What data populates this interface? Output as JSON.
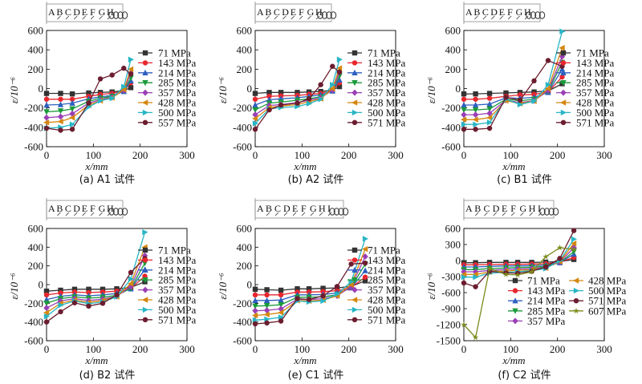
{
  "figure": {
    "panels": [
      {
        "caption": "(a) A1 试件",
        "strip_letters": [
          "A",
          "B",
          "C",
          "D",
          "E",
          "F",
          "G",
          "H"
        ]
      },
      {
        "caption": "(b) A2 试件",
        "strip_letters": [
          "A",
          "B",
          "C",
          "D",
          "E",
          "F",
          "G",
          "H"
        ]
      },
      {
        "caption": "(c) B1 试件",
        "strip_letters": [
          "A",
          "B",
          "C",
          "D",
          "E",
          "F",
          "G",
          "H"
        ]
      },
      {
        "caption": "(d) B2 试件",
        "strip_letters": [
          "A",
          "B",
          "C",
          "D",
          "E",
          "F",
          "G",
          "H"
        ]
      },
      {
        "caption": "(e) C1 试件",
        "strip_letters": [
          "A",
          "B",
          "C",
          "D",
          "E",
          "F",
          "G",
          "H",
          "I"
        ]
      },
      {
        "caption": "(f) C2 试件",
        "strip_letters": [
          "A",
          "B",
          "C",
          "D",
          "E",
          "F",
          "G",
          "H",
          "I"
        ]
      }
    ]
  },
  "chart_data": [
    {
      "type": "line",
      "title": "",
      "xlabel": "x/mm",
      "ylabel": "ε/10⁻⁶",
      "xlim": [
        0,
        300
      ],
      "ylim": [
        -600,
        600
      ],
      "xticks": [
        0,
        100,
        200,
        300
      ],
      "yticks": [
        -600,
        -400,
        -200,
        0,
        200,
        400,
        600
      ],
      "x": [
        0,
        30,
        55,
        90,
        115,
        140,
        165,
        180
      ],
      "series": [
        {
          "name": "71 MPa",
          "color": "#333333",
          "marker": "square",
          "values": [
            -50,
            -50,
            -55,
            -45,
            -40,
            -35,
            -20,
            10
          ]
        },
        {
          "name": "143 MPa",
          "color": "#e8262d",
          "marker": "circle",
          "values": [
            -110,
            -110,
            -110,
            -80,
            -60,
            -50,
            -25,
            60
          ]
        },
        {
          "name": "214 MPa",
          "color": "#2d5fbf",
          "marker": "triangle",
          "values": [
            -170,
            -165,
            -150,
            -105,
            -85,
            -70,
            -30,
            80
          ]
        },
        {
          "name": "285 MPa",
          "color": "#1a9a3a",
          "marker": "tri-down",
          "values": [
            -240,
            -230,
            -210,
            -130,
            -100,
            -80,
            -25,
            110
          ]
        },
        {
          "name": "357 MPa",
          "color": "#9a3fb5",
          "marker": "diamond",
          "values": [
            -300,
            -290,
            -260,
            -150,
            -115,
            -90,
            -20,
            160
          ]
        },
        {
          "name": "428 MPa",
          "color": "#d5860f",
          "marker": "tri-left",
          "values": [
            -350,
            -340,
            -300,
            -170,
            -125,
            -95,
            -10,
            200
          ]
        },
        {
          "name": "500 MPa",
          "color": "#27b5c4",
          "marker": "tri-right",
          "values": [
            -410,
            -400,
            -370,
            -190,
            -125,
            -100,
            20,
            300
          ]
        },
        {
          "name": "557 MPa",
          "color": "#6b1d2f",
          "marker": "circle",
          "values": [
            -410,
            -430,
            -420,
            -150,
            100,
            140,
            210,
            150
          ]
        }
      ]
    },
    {
      "type": "line",
      "title": "",
      "xlabel": "x/mm",
      "ylabel": "ε/10⁻⁶",
      "xlim": [
        0,
        300
      ],
      "ylim": [
        -600,
        600
      ],
      "xticks": [
        0,
        100,
        200,
        300
      ],
      "yticks": [
        -600,
        -400,
        -200,
        0,
        200,
        400,
        600
      ],
      "x": [
        0,
        30,
        55,
        90,
        115,
        140,
        165,
        180
      ],
      "series": [
        {
          "name": "71 MPa",
          "color": "#333333",
          "marker": "square",
          "values": [
            -50,
            -40,
            -40,
            -40,
            -35,
            -30,
            -15,
            20
          ]
        },
        {
          "name": "143 MPa",
          "color": "#e8262d",
          "marker": "circle",
          "values": [
            -110,
            -80,
            -75,
            -70,
            -60,
            -50,
            -20,
            60
          ]
        },
        {
          "name": "214 MPa",
          "color": "#2d5fbf",
          "marker": "triangle",
          "values": [
            -170,
            -115,
            -105,
            -95,
            -80,
            -65,
            -25,
            90
          ]
        },
        {
          "name": "285 MPa",
          "color": "#1a9a3a",
          "marker": "tri-down",
          "values": [
            -220,
            -150,
            -140,
            -120,
            -105,
            -85,
            -20,
            130
          ]
        },
        {
          "name": "357 MPa",
          "color": "#9a3fb5",
          "marker": "diamond",
          "values": [
            -270,
            -175,
            -165,
            -145,
            -120,
            -95,
            -15,
            170
          ]
        },
        {
          "name": "428 MPa",
          "color": "#d5860f",
          "marker": "tri-left",
          "values": [
            -310,
            -195,
            -180,
            -165,
            -135,
            -105,
            0,
            210
          ]
        },
        {
          "name": "500 MPa",
          "color": "#27b5c4",
          "marker": "tri-right",
          "values": [
            -360,
            -210,
            -195,
            -185,
            -155,
            -110,
            40,
            300
          ]
        },
        {
          "name": "571 MPa",
          "color": "#6b1d2f",
          "marker": "circle",
          "values": [
            -420,
            -220,
            -170,
            -150,
            -105,
            40,
            230,
            170
          ]
        }
      ]
    },
    {
      "type": "line",
      "title": "",
      "xlabel": "x/mm",
      "ylabel": "ε/10⁻⁶",
      "xlim": [
        0,
        300
      ],
      "ylim": [
        -600,
        600
      ],
      "xticks": [
        0,
        100,
        200,
        300
      ],
      "yticks": [
        -600,
        -400,
        -200,
        0,
        200,
        400,
        600
      ],
      "x": [
        0,
        25,
        55,
        90,
        120,
        150,
        180,
        210
      ],
      "series": [
        {
          "name": "71 MPa",
          "color": "#333333",
          "marker": "square",
          "values": [
            -55,
            -55,
            -50,
            -45,
            -40,
            -35,
            -25,
            50
          ]
        },
        {
          "name": "143 MPa",
          "color": "#e8262d",
          "marker": "circle",
          "values": [
            -110,
            -110,
            -100,
            -80,
            -65,
            -60,
            -35,
            120
          ]
        },
        {
          "name": "214 MPa",
          "color": "#2d5fbf",
          "marker": "triangle",
          "values": [
            -170,
            -170,
            -160,
            -95,
            -100,
            -90,
            -40,
            200
          ]
        },
        {
          "name": "285 MPa",
          "color": "#1a9a3a",
          "marker": "tri-down",
          "values": [
            -220,
            -220,
            -210,
            -110,
            -125,
            -110,
            -30,
            270
          ]
        },
        {
          "name": "357 MPa",
          "color": "#9a3fb5",
          "marker": "diamond",
          "values": [
            -270,
            -270,
            -255,
            -120,
            -145,
            -125,
            -20,
            330
          ]
        },
        {
          "name": "428 MPa",
          "color": "#d5860f",
          "marker": "tri-left",
          "values": [
            -320,
            -320,
            -300,
            -125,
            -155,
            -130,
            0,
            420
          ]
        },
        {
          "name": "500 MPa",
          "color": "#27b5c4",
          "marker": "tri-right",
          "values": [
            -370,
            -370,
            -350,
            -110,
            -165,
            -130,
            40,
            590
          ]
        },
        {
          "name": "571 MPa",
          "color": "#6b1d2f",
          "marker": "circle",
          "values": [
            -420,
            -420,
            -410,
            -90,
            -120,
            80,
            290,
            230
          ]
        }
      ]
    },
    {
      "type": "line",
      "title": "",
      "xlabel": "x/mm",
      "ylabel": "ε/10⁻⁶",
      "xlim": [
        0,
        300
      ],
      "ylim": [
        -600,
        600
      ],
      "xticks": [
        0,
        100,
        200,
        300
      ],
      "yticks": [
        -600,
        -400,
        -200,
        0,
        200,
        400,
        600
      ],
      "x": [
        0,
        30,
        60,
        90,
        120,
        150,
        180,
        210
      ],
      "series": [
        {
          "name": "71 MPa",
          "color": "#333333",
          "marker": "square",
          "values": [
            -70,
            -60,
            -50,
            -50,
            -50,
            -45,
            -30,
            30
          ]
        },
        {
          "name": "143 MPa",
          "color": "#e8262d",
          "marker": "circle",
          "values": [
            -110,
            -90,
            -80,
            -85,
            -80,
            -70,
            -40,
            90
          ]
        },
        {
          "name": "214 MPa",
          "color": "#2d5fbf",
          "marker": "triangle",
          "values": [
            -160,
            -125,
            -110,
            -120,
            -110,
            -95,
            -45,
            160
          ]
        },
        {
          "name": "285 MPa",
          "color": "#1a9a3a",
          "marker": "tri-down",
          "values": [
            -200,
            -150,
            -130,
            -145,
            -135,
            -115,
            -40,
            230
          ]
        },
        {
          "name": "357 MPa",
          "color": "#9a3fb5",
          "marker": "diamond",
          "values": [
            -250,
            -175,
            -150,
            -170,
            -155,
            -125,
            -20,
            310
          ]
        },
        {
          "name": "428 MPa",
          "color": "#d5860f",
          "marker": "tri-left",
          "values": [
            -300,
            -200,
            -165,
            -190,
            -170,
            -130,
            10,
            400
          ]
        },
        {
          "name": "500 MPa",
          "color": "#27b5c4",
          "marker": "tri-right",
          "values": [
            -340,
            -220,
            -175,
            -205,
            -185,
            -130,
            60,
            560
          ]
        },
        {
          "name": "571 MPa",
          "color": "#6b1d2f",
          "marker": "circle",
          "values": [
            -400,
            -290,
            -195,
            -230,
            -200,
            -110,
            130,
            280
          ]
        }
      ]
    },
    {
      "type": "line",
      "title": "",
      "xlabel": "x/mm",
      "ylabel": "ε/10⁻⁶",
      "xlim": [
        0,
        300
      ],
      "ylim": [
        -600,
        600
      ],
      "xticks": [
        0,
        100,
        200,
        300
      ],
      "yticks": [
        -600,
        -400,
        -200,
        0,
        200,
        400,
        600
      ],
      "x": [
        0,
        25,
        55,
        90,
        115,
        145,
        175,
        205,
        235
      ],
      "series": [
        {
          "name": "71 MPa",
          "color": "#333333",
          "marker": "square",
          "values": [
            -50,
            -55,
            -60,
            -45,
            -45,
            -40,
            -35,
            -20,
            40
          ]
        },
        {
          "name": "143 MPa",
          "color": "#e8262d",
          "marker": "circle",
          "values": [
            -110,
            -110,
            -110,
            -80,
            -80,
            -75,
            -65,
            -30,
            80
          ]
        },
        {
          "name": "214 MPa",
          "color": "#2d5fbf",
          "marker": "triangle",
          "values": [
            -170,
            -170,
            -165,
            -110,
            -110,
            -105,
            -90,
            -35,
            150
          ]
        },
        {
          "name": "285 MPa",
          "color": "#1a9a3a",
          "marker": "tri-down",
          "values": [
            -230,
            -225,
            -215,
            -135,
            -135,
            -130,
            -110,
            -30,
            220
          ]
        },
        {
          "name": "357 MPa",
          "color": "#9a3fb5",
          "marker": "diamond",
          "values": [
            -280,
            -275,
            -260,
            -155,
            -160,
            -150,
            -120,
            -20,
            300
          ]
        },
        {
          "name": "428 MPa",
          "color": "#d5860f",
          "marker": "tri-left",
          "values": [
            -330,
            -320,
            -300,
            -170,
            -175,
            -165,
            -120,
            0,
            380
          ]
        },
        {
          "name": "500 MPa",
          "color": "#27b5c4",
          "marker": "tri-right",
          "values": [
            -380,
            -370,
            -350,
            -175,
            -185,
            -175,
            -100,
            30,
            490
          ]
        },
        {
          "name": "571 MPa",
          "color": "#6b1d2f",
          "marker": "circle",
          "values": [
            -420,
            -410,
            -390,
            -150,
            -160,
            -120,
            -20,
            220,
            230
          ]
        }
      ]
    },
    {
      "type": "line",
      "title": "",
      "xlabel": "x/mm",
      "ylabel": "ε/10⁻⁶",
      "xlim": [
        0,
        300
      ],
      "ylim": [
        -1500,
        600
      ],
      "xticks": [
        0,
        100,
        200,
        300
      ],
      "yticks": [
        -1500,
        -1200,
        -900,
        -600,
        -300,
        0,
        300,
        600
      ],
      "x": [
        0,
        25,
        55,
        90,
        115,
        145,
        175,
        205,
        235
      ],
      "series": [
        {
          "name": "71 MPa",
          "color": "#333333",
          "marker": "square",
          "values": [
            -40,
            -40,
            -35,
            -35,
            -35,
            -35,
            -30,
            -20,
            20
          ]
        },
        {
          "name": "143 MPa",
          "color": "#e8262d",
          "marker": "circle",
          "values": [
            -80,
            -80,
            -75,
            -70,
            -70,
            -65,
            -60,
            -30,
            60
          ]
        },
        {
          "name": "214 MPa",
          "color": "#2d5fbf",
          "marker": "triangle",
          "values": [
            -120,
            -120,
            -110,
            -100,
            -100,
            -95,
            -85,
            -40,
            120
          ]
        },
        {
          "name": "285 MPa",
          "color": "#1a9a3a",
          "marker": "tri-down",
          "values": [
            -170,
            -170,
            -150,
            -140,
            -130,
            -125,
            -110,
            -40,
            170
          ]
        },
        {
          "name": "357 MPa",
          "color": "#9a3fb5",
          "marker": "diamond",
          "values": [
            -210,
            -210,
            -185,
            -170,
            -160,
            -150,
            -130,
            -30,
            240
          ]
        },
        {
          "name": "428 MPa",
          "color": "#d5860f",
          "marker": "tri-left",
          "values": [
            -260,
            -260,
            -215,
            -195,
            -185,
            -170,
            -140,
            -20,
            320
          ]
        },
        {
          "name": "500 MPa",
          "color": "#27b5c4",
          "marker": "tri-right",
          "values": [
            -310,
            -310,
            -235,
            -220,
            -210,
            -190,
            -150,
            0,
            400
          ]
        },
        {
          "name": "571 MPa",
          "color": "#6b1d2f",
          "marker": "circle",
          "values": [
            -420,
            -490,
            -200,
            -230,
            -240,
            -200,
            -120,
            40,
            560
          ]
        },
        {
          "name": "607 MPa",
          "color": "#7c8a1a",
          "marker": "star",
          "values": [
            -1200,
            -1440,
            -150,
            -260,
            -270,
            -210,
            70,
            240,
            210
          ]
        }
      ]
    }
  ]
}
